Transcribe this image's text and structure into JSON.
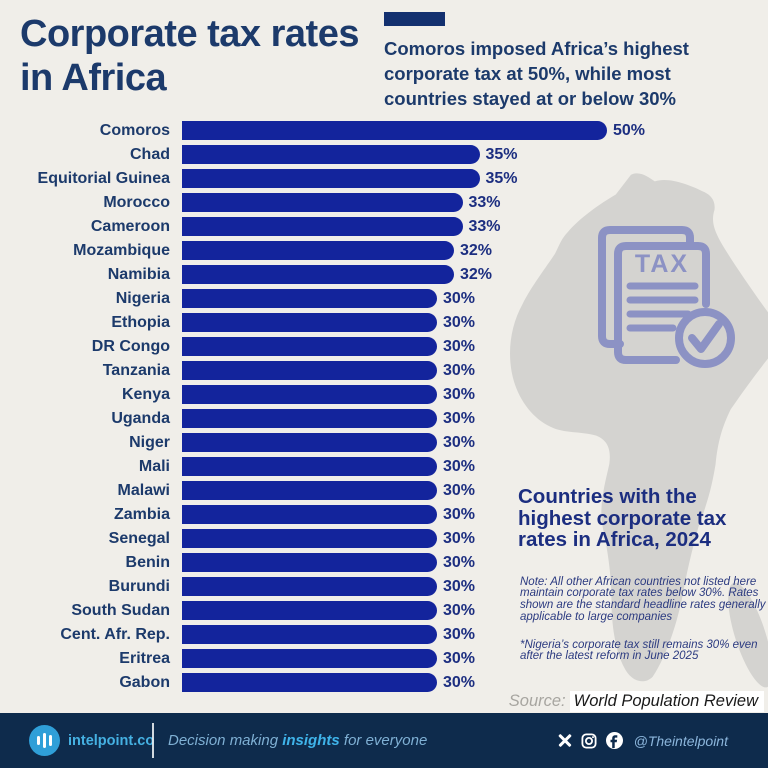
{
  "header": {
    "title": "Corporate tax rates in Africa",
    "subtitle": "Comoros imposed Africa’s highest corporate tax at 50%, while most countries stayed at or below 30%"
  },
  "chart_data": {
    "type": "bar",
    "orientation": "horizontal",
    "categories": [
      "Comoros",
      "Chad",
      "Equitorial Guinea",
      "Morocco",
      "Cameroon",
      "Mozambique",
      "Namibia",
      "Nigeria",
      "Ethopia",
      "DR Congo",
      "Tanzania",
      "Kenya",
      "Uganda",
      "Niger",
      "Mali",
      "Malawi",
      "Zambia",
      "Senegal",
      "Benin",
      "Burundi",
      "South Sudan",
      "Cent. Afr. Rep.",
      "Eritrea",
      "Gabon"
    ],
    "values": [
      50,
      35,
      35,
      33,
      33,
      32,
      32,
      30,
      30,
      30,
      30,
      30,
      30,
      30,
      30,
      30,
      30,
      30,
      30,
      30,
      30,
      30,
      30,
      30
    ],
    "value_suffix": "%",
    "title": "Corporate tax rates in Africa",
    "xlabel": "",
    "ylabel": "",
    "xlim": [
      0,
      50
    ],
    "grid": false,
    "legend": false,
    "bar_color": "#13249c"
  },
  "map": {
    "tax_icon_label": "TAX"
  },
  "caption": {
    "title": "Countries with the highest corporate tax rates in Africa, 2024",
    "note": "Note: All other African countries not listed here maintain corporate tax rates below 30%. Rates shown are the standard headline rates generally applicable to large companies",
    "nigeria_note": "*Nigeria’s corporate tax still remains 30% even after the latest reform in June 2025"
  },
  "source": {
    "label": "Source:",
    "value": "World Population Review"
  },
  "footer": {
    "brand": "intelpoint.co",
    "tagline_pre": "Decision making ",
    "tagline_bold": "insights",
    "tagline_post": " for everyone",
    "social_handle": "@Theintelpoint",
    "icons": [
      "x-icon",
      "instagram-icon",
      "facebook-icon",
      "bar-chart-logo-icon"
    ]
  },
  "colors": {
    "background": "#f0eee9",
    "title_navy": "#1c3a6b",
    "value_navy": "#1c2e80",
    "bar": "#13249c",
    "accent_navy": "#13306f",
    "footer_bg": "#0e2b4c",
    "brand_blue": "#2f9fd8",
    "map_gray": "#d4d3d0",
    "tax_icon": "#8087c2"
  }
}
